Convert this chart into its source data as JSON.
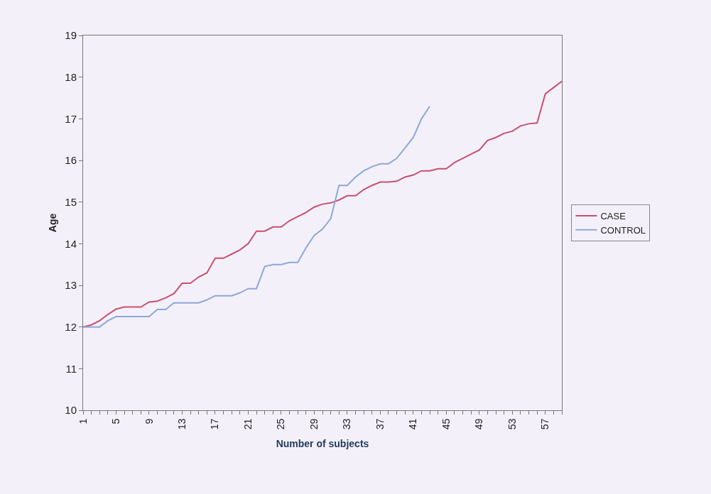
{
  "chart_data": {
    "type": "line",
    "xlabel": "Number of subjects",
    "ylabel": "Age",
    "categories": [
      "1",
      null,
      null,
      null,
      "5",
      null,
      null,
      null,
      "9",
      null,
      null,
      null,
      "13",
      null,
      null,
      null,
      "17",
      null,
      null,
      null,
      "21",
      null,
      null,
      null,
      "25",
      null,
      null,
      null,
      "29",
      null,
      null,
      null,
      "33",
      null,
      null,
      null,
      "37",
      null,
      null,
      null,
      "41",
      null,
      null,
      null,
      "45",
      null,
      null,
      null,
      "49",
      null,
      null,
      null,
      "53",
      null,
      null,
      null,
      "57",
      null,
      null
    ],
    "series": [
      {
        "name": "CASE",
        "color": "#c8506e",
        "values": [
          12.0,
          12.05,
          12.15,
          12.3,
          12.43,
          12.48,
          12.48,
          12.48,
          12.6,
          12.62,
          12.7,
          12.8,
          13.05,
          13.05,
          13.2,
          13.3,
          13.65,
          13.65,
          13.75,
          13.85,
          14.0,
          14.3,
          14.3,
          14.4,
          14.4,
          14.55,
          14.65,
          14.75,
          14.88,
          14.95,
          14.98,
          15.05,
          15.15,
          15.15,
          15.3,
          15.4,
          15.48,
          15.48,
          15.5,
          15.6,
          15.65,
          15.75,
          15.75,
          15.8,
          15.8,
          15.95,
          16.05,
          16.15,
          16.25,
          16.48,
          16.55,
          16.65,
          16.7,
          16.83,
          16.88,
          16.9,
          17.6,
          17.75,
          17.9
        ]
      },
      {
        "name": "CONTROL",
        "color": "#8ca8d8",
        "values": [
          12.0,
          12.0,
          12.0,
          12.15,
          12.25,
          12.25,
          12.25,
          12.25,
          12.25,
          12.42,
          12.42,
          12.58,
          12.58,
          12.58,
          12.58,
          12.65,
          12.75,
          12.75,
          12.75,
          12.82,
          12.92,
          12.92,
          13.45,
          13.5,
          13.5,
          13.55,
          13.55,
          13.9,
          14.2,
          14.35,
          14.6,
          15.4,
          15.4,
          15.6,
          15.75,
          15.85,
          15.92,
          15.92,
          16.05,
          16.3,
          16.55,
          17.0,
          17.3,
          null,
          null,
          null,
          null,
          null,
          null,
          null,
          null,
          null,
          null,
          null,
          null,
          null,
          null,
          null,
          null
        ]
      }
    ],
    "ylim": [
      10,
      19
    ],
    "yticks": [
      10,
      11,
      12,
      13,
      14,
      15,
      16,
      17,
      18,
      19
    ],
    "grid": false,
    "legend": "right",
    "marker": "none",
    "line_style": "solid"
  }
}
